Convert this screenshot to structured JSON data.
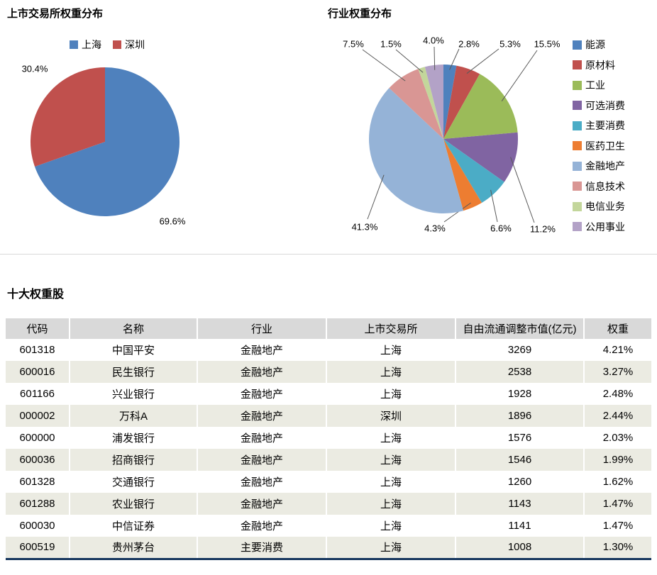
{
  "chart_data": [
    {
      "type": "pie",
      "title": "上市交易所权重分布",
      "categories": [
        "上海",
        "深圳"
      ],
      "values": [
        69.6,
        30.4
      ],
      "data_labels": [
        "69.6%",
        "30.4%"
      ],
      "colors": [
        "#4F81BD",
        "#C0504D"
      ],
      "legend_position": "top"
    },
    {
      "type": "pie",
      "title": "行业权重分布",
      "categories": [
        "能源",
        "原材料",
        "工业",
        "可选消费",
        "主要消费",
        "医药卫生",
        "金融地产",
        "信息技术",
        "电信业务",
        "公用事业"
      ],
      "values": [
        2.8,
        5.3,
        15.5,
        11.2,
        6.6,
        4.3,
        41.3,
        7.5,
        1.5,
        4.0
      ],
      "data_labels": [
        "2.8%",
        "5.3%",
        "15.5%",
        "11.2%",
        "6.6%",
        "4.3%",
        "41.3%",
        "7.5%",
        "1.5%",
        "4.0%"
      ],
      "colors": [
        "#4F81BD",
        "#C0504D",
        "#9BBB59",
        "#8064A2",
        "#4BACC6",
        "#ED7D31",
        "#95B3D7",
        "#D99694",
        "#C3D69B",
        "#B3A2C7"
      ],
      "legend_position": "right"
    },
    {
      "type": "table",
      "title": "十大权重股",
      "headers": [
        "代码",
        "名称",
        "行业",
        "上市交易所",
        "自由流通调整市值(亿元)",
        "权重"
      ],
      "rows": [
        [
          "601318",
          "中国平安",
          "金融地产",
          "上海",
          "3269",
          "4.21%"
        ],
        [
          "600016",
          "民生银行",
          "金融地产",
          "上海",
          "2538",
          "3.27%"
        ],
        [
          "601166",
          "兴业银行",
          "金融地产",
          "上海",
          "1928",
          "2.48%"
        ],
        [
          "000002",
          "万科A",
          "金融地产",
          "深圳",
          "1896",
          "2.44%"
        ],
        [
          "600000",
          "浦发银行",
          "金融地产",
          "上海",
          "1576",
          "2.03%"
        ],
        [
          "600036",
          "招商银行",
          "金融地产",
          "上海",
          "1546",
          "1.99%"
        ],
        [
          "601328",
          "交通银行",
          "金融地产",
          "上海",
          "1260",
          "1.62%"
        ],
        [
          "601288",
          "农业银行",
          "金融地产",
          "上海",
          "1143",
          "1.47%"
        ],
        [
          "600030",
          "中信证券",
          "金融地产",
          "上海",
          "1141",
          "1.47%"
        ],
        [
          "600519",
          "贵州茅台",
          "主要消费",
          "上海",
          "1008",
          "1.30%"
        ]
      ]
    }
  ],
  "colors": {
    "table_header_bg": "#D9D9D9",
    "table_stripe_bg": "#EBEBE2",
    "table_bottom_border": "#17375E"
  }
}
